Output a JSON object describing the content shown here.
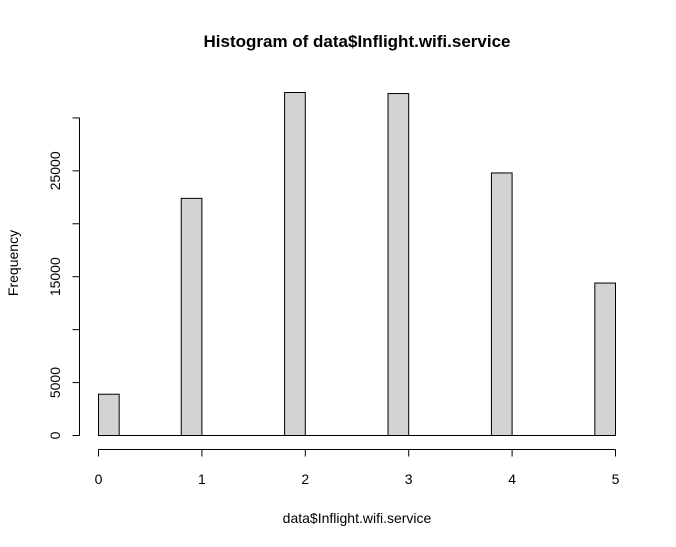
{
  "chart_data": {
    "type": "bar",
    "title": "Histogram of data$Inflight.wifi.service",
    "xlabel": "data$Inflight.wifi.service",
    "ylabel": "Frequency",
    "bar_color": "#d3d3d3",
    "bar_edge_color": "#000000",
    "bins": [
      {
        "from": 0.0,
        "to": 0.2,
        "value": 3900
      },
      {
        "from": 0.8,
        "to": 1.0,
        "value": 22400
      },
      {
        "from": 1.8,
        "to": 2.0,
        "value": 32400
      },
      {
        "from": 2.8,
        "to": 3.0,
        "value": 32300
      },
      {
        "from": 3.8,
        "to": 4.0,
        "value": 24800
      },
      {
        "from": 4.8,
        "to": 5.0,
        "value": 14400
      }
    ],
    "xlim": [
      0,
      5
    ],
    "ylim": [
      0,
      32400
    ],
    "x_ticks": [
      0,
      1,
      2,
      3,
      4,
      5
    ],
    "y_ticks": [
      0,
      5000,
      10000,
      15000,
      20000,
      25000,
      30000
    ],
    "y_tick_labels": [
      "0",
      "5000",
      "",
      "15000",
      "",
      "25000",
      ""
    ],
    "grid": false,
    "legend": "none"
  }
}
